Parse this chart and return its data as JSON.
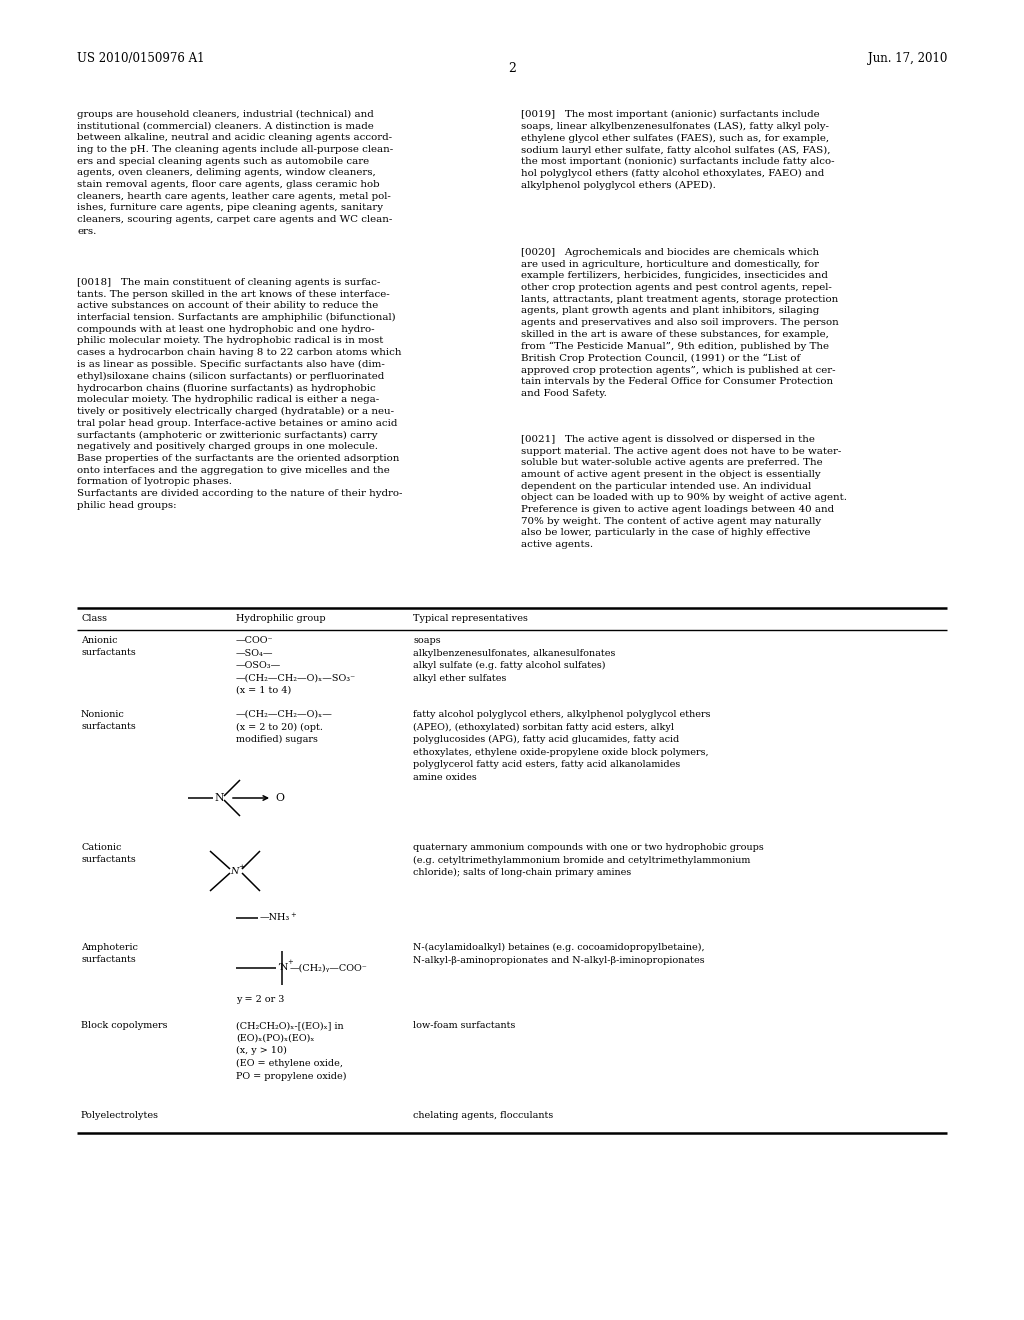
{
  "header_left": "US 2010/0150976 A1",
  "header_right": "Jun. 17, 2010",
  "page_number": "2",
  "bg_color": "#ffffff",
  "text_color": "#000000",
  "para_left_1": "groups are household cleaners, industrial (technical) and\ninstitutional (commercial) cleaners. A distinction is made\nbetween alkaline, neutral and acidic cleaning agents accord-\ning to the pH. The cleaning agents include all-purpose clean-\ners and special cleaning agents such as automobile care\nagents, oven cleaners, deliming agents, window cleaners,\nstain removal agents, floor care agents, glass ceramic hob\ncleaners, hearth care agents, leather care agents, metal pol-\nishes, furniture care agents, pipe cleaning agents, sanitary\ncleaners, scouring agents, carpet care agents and WC clean-\ners.",
  "para_left_2": "[0018]   The main constituent of cleaning agents is surfac-\ntants. The person skilled in the art knows of these interface-\nactive substances on account of their ability to reduce the\ninterfacial tension. Surfactants are amphiphilic (bifunctional)\ncompounds with at least one hydrophobic and one hydro-\nphilic molecular moiety. The hydrophobic radical is in most\ncases a hydrocarbon chain having 8 to 22 carbon atoms which\nis as linear as possible. Specific surfactants also have (dim-\nethyl)siloxane chains (silicon surfactants) or perfluorinated\nhydrocarbon chains (fluorine surfactants) as hydrophobic\nmolecular moiety. The hydrophilic radical is either a nega-\ntively or positively electrically charged (hydratable) or a neu-\ntral polar head group. Interface-active betaines or amino acid\nsurfactants (amphoteric or zwitterionic surfactants) carry\nnegatively and positively charged groups in one molecule.\nBase properties of the surfactants are the oriented adsorption\nonto interfaces and the aggregation to give micelles and the\nformation of lyotropic phases.\nSurfactants are divided according to the nature of their hydro-\nphilic head groups:",
  "para_right_1": "[0019]   The most important (anionic) surfactants include\nsoaps, linear alkylbenzenesulfonates (LAS), fatty alkyl poly-\nethylene glycol ether sulfates (FAES), such as, for example,\nsodium lauryl ether sulfate, fatty alcohol sulfates (AS, FAS),\nthe most important (nonionic) surfactants include fatty alco-\nhol polyglycol ethers (fatty alcohol ethoxylates, FAEO) and\nalkylphenol polyglycol ethers (APED).",
  "para_right_2": "[0020]   Agrochemicals and biocides are chemicals which\nare used in agriculture, horticulture and domestically, for\nexample fertilizers, herbicides, fungicides, insecticides and\nother crop protection agents and pest control agents, repel-\nlants, attractants, plant treatment agents, storage protection\nagents, plant growth agents and plant inhibitors, silaging\nagents and preservatives and also soil improvers. The person\nskilled in the art is aware of these substances, for example,\nfrom “The Pesticide Manual”, 9th edition, published by The\nBritish Crop Protection Council, (1991) or the “List of\napproved crop protection agents”, which is published at cer-\ntain intervals by the Federal Office for Consumer Protection\nand Food Safety.",
  "para_right_3": "[0021]   The active agent is dissolved or dispersed in the\nsupport material. The active agent does not have to be water-\nsoluble but water-soluble active agents are preferred. The\namount of active agent present in the object is essentially\ndependent on the particular intended use. An individual\nobject can be loaded with up to 90% by weight of active agent.\nPreference is given to active agent loadings between 40 and\n70% by weight. The content of active agent may naturally\nalso be lower, particularly in the case of highly effective\nactive agents.",
  "tbl_class_header": "Class",
  "tbl_hydro_header": "Hydrophilic group",
  "tbl_typical_header": "Typical representatives",
  "anionic_class": "Anionic\nsurfactants",
  "anionic_hydro": "—COO⁻\n—SO₄—\n—OSO₃—\n—(CH₂—CH₂—O)ₓ—SO₃⁻\n(x = 1 to 4)",
  "anionic_typical": "soaps\nalkylbenzenesulfonates, alkanesulfonates\nalkyl sulfate (e.g. fatty alcohol sulfates)\nalkyl ether sulfates",
  "nonionic_class": "Nonionic\nsurfactants",
  "nonionic_hydro": "—(CH₂—CH₂—O)ₓ—\n(x = 2 to 20) (opt.\nmodified) sugars",
  "nonionic_typical": "fatty alcohol polyglycol ethers, alkylphenol polyglycol ethers\n(APEO), (ethoxylated) sorbitan fatty acid esters, alkyl\npolyglucosides (APG), fatty acid glucamides, fatty acid\nethoxylates, ethylene oxide-propylene oxide block polymers,\npolyglycerol fatty acid esters, fatty acid alkanolamides\namine oxides",
  "cationic_class": "Cationic\nsurfactants",
  "cationic_typical": "quaternary ammonium compounds with one or two hydrophobic groups\n(e.g. cetyltrimethylammonium bromide and cetyltrimethylammonium\nchloride); salts of long-chain primary amines",
  "amphoteric_class": "Amphoteric\nsurfactants",
  "amphoteric_typical": "N-(acylamidoalkyl) betaines (e.g. cocoamidopropylbetaine),\nN-alkyl-β-aminopropionates and N-alkyl-β-iminopropionates",
  "block_class": "Block copolymers",
  "block_hydro": "(CH₂CH₂O)ₓ-[(EO)ₓ] in\n(EO)ₓ(PO)ₓ(EO)ₓ\n(x, y > 10)\n(EO = ethylene oxide,\nPO = propylene oxide)",
  "block_typical": "low-foam surfactants",
  "poly_class": "Polyelectrolytes",
  "poly_typical": "chelating agents, flocculants"
}
